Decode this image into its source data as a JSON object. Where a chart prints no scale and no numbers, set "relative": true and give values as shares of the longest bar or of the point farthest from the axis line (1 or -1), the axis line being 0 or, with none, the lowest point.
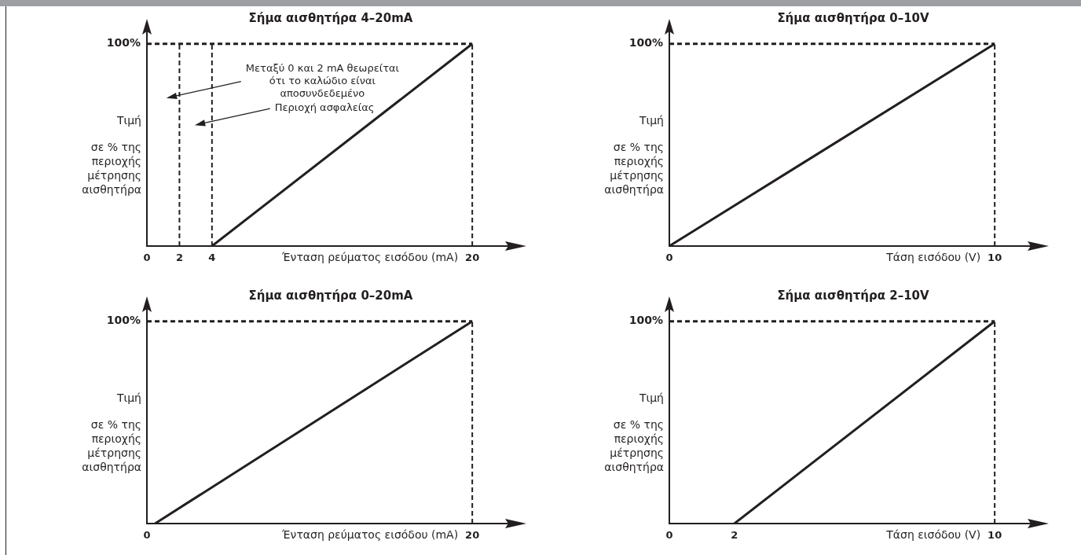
{
  "chart_data": [
    {
      "type": "line",
      "title": "Σήμα αισθητήρα 4–20mA",
      "xlabel": "Ένταση ρεύματος εισόδου (mA)",
      "ylabel": "Τιμή σε % της περιοχής μέτρησης αισθητήρα",
      "relative": true,
      "xlim": [
        0,
        22.6
      ],
      "xticks": [
        0,
        2,
        4,
        20
      ],
      "grid": false,
      "legend": false,
      "marker": "none",
      "series": [
        {
          "x": [
            4,
            20
          ],
          "values": [
            0,
            1
          ],
          "color": "#231f20",
          "line_style": "solid"
        },
        {
          "x": [
            0,
            20
          ],
          "values": [
            1,
            1
          ],
          "color": "#231f20",
          "line_style": "dashed"
        }
      ],
      "ref_lines": [
        {
          "axis": "x",
          "value": 2,
          "line_style": "dashed"
        },
        {
          "axis": "x",
          "value": 4,
          "line_style": "dashed"
        },
        {
          "axis": "x",
          "value": 20,
          "line_style": "dashed"
        }
      ],
      "annotations": [
        "100%",
        "Μεταξύ 0 και 2 mA θεωρείται ότι το καλώδιο είναι αποσυνδεδεμένο",
        "Περιοχή ασφαλείας"
      ]
    },
    {
      "type": "line",
      "title": "Σήμα αισθητήρα 0–10V",
      "xlabel": "Τάση εισόδου (V)",
      "ylabel": "Τιμή σε % της περιοχής μέτρησης αισθητήρα",
      "relative": true,
      "xlim": [
        0,
        11.3
      ],
      "xticks": [
        0,
        10
      ],
      "grid": false,
      "legend": false,
      "marker": "none",
      "series": [
        {
          "x": [
            0,
            10
          ],
          "values": [
            0,
            1
          ],
          "color": "#231f20",
          "line_style": "solid"
        },
        {
          "x": [
            0,
            10
          ],
          "values": [
            1,
            1
          ],
          "color": "#231f20",
          "line_style": "dashed"
        }
      ],
      "ref_lines": [
        {
          "axis": "x",
          "value": 10,
          "line_style": "dashed"
        }
      ],
      "annotations": [
        "100%"
      ]
    },
    {
      "type": "line",
      "title": "Σήμα αισθητήρα 0–20mA",
      "xlabel": "Ένταση ρεύματος εισόδου (mA)",
      "ylabel": "Τιμή σε % της περιοχής μέτρησης αισθητήρα",
      "relative": true,
      "xlim": [
        0,
        22.6
      ],
      "xticks": [
        0,
        20
      ],
      "grid": false,
      "legend": false,
      "marker": "none",
      "series": [
        {
          "x": [
            0.5,
            20
          ],
          "values": [
            0,
            1
          ],
          "color": "#231f20",
          "line_style": "solid"
        },
        {
          "x": [
            0,
            20
          ],
          "values": [
            1,
            1
          ],
          "color": "#231f20",
          "line_style": "dashed"
        }
      ],
      "ref_lines": [
        {
          "axis": "x",
          "value": 20,
          "line_style": "dashed"
        }
      ],
      "annotations": [
        "100%"
      ]
    },
    {
      "type": "line",
      "title": "Σήμα αισθητήρα 2–10V",
      "xlabel": "Τάση εισόδου (V)",
      "ylabel": "Τιμή σε % της περιοχής μέτρησης αισθητήρα",
      "relative": true,
      "xlim": [
        0,
        11.3
      ],
      "xticks": [
        0,
        2,
        10
      ],
      "grid": false,
      "legend": false,
      "marker": "none",
      "series": [
        {
          "x": [
            2,
            10
          ],
          "values": [
            0,
            1
          ],
          "color": "#231f20",
          "line_style": "solid"
        },
        {
          "x": [
            0,
            10
          ],
          "values": [
            1,
            1
          ],
          "color": "#231f20",
          "line_style": "dashed"
        }
      ],
      "ref_lines": [
        {
          "axis": "x",
          "value": 10,
          "line_style": "dashed"
        }
      ],
      "annotations": [
        "100%"
      ]
    }
  ]
}
